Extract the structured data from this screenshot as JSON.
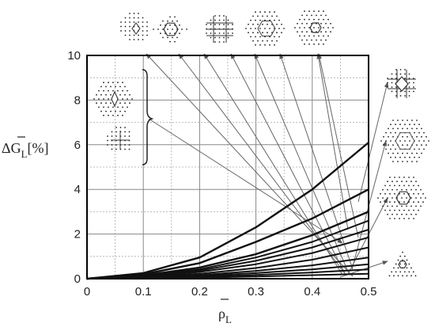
{
  "chart_data": {
    "type": "line",
    "xlabel_symbol": "ρ",
    "xlabel_sub": "L",
    "ylabel_symbol": "ΔG",
    "ylabel_sub": "L",
    "ylabel_unit": "[%]",
    "xlim": [
      0,
      0.5
    ],
    "ylim": [
      0,
      10
    ],
    "x_ticks": [
      0,
      0.1,
      0.2,
      0.3,
      0.4,
      0.5
    ],
    "x_tick_labels": [
      "0",
      "0.1",
      "0.2",
      "0.3",
      "0.4",
      "0.5"
    ],
    "y_ticks": [
      0,
      2,
      4,
      6,
      8,
      10
    ],
    "y_tick_labels": [
      "0",
      "2",
      "4",
      "6",
      "8",
      "10"
    ],
    "grid_major": true,
    "grid_minor_y": true,
    "series": [
      {
        "x": [
          0,
          0.1,
          0.2,
          0.3,
          0.4,
          0.5
        ],
        "values": [
          0,
          0.25,
          0.95,
          2.3,
          4.0,
          6.1
        ]
      },
      {
        "x": [
          0,
          0.1,
          0.2,
          0.3,
          0.4,
          0.5
        ],
        "values": [
          0,
          0.2,
          0.7,
          1.65,
          2.7,
          4.0
        ]
      },
      {
        "x": [
          0,
          0.1,
          0.2,
          0.3,
          0.4,
          0.5
        ],
        "values": [
          0,
          0.15,
          0.5,
          1.1,
          1.95,
          3.0
        ]
      },
      {
        "x": [
          0,
          0.1,
          0.2,
          0.3,
          0.4,
          0.5
        ],
        "values": [
          0,
          0.13,
          0.42,
          0.95,
          1.65,
          2.6
        ]
      },
      {
        "x": [
          0,
          0.1,
          0.2,
          0.3,
          0.4,
          0.5
        ],
        "values": [
          0,
          0.11,
          0.36,
          0.8,
          1.4,
          2.2
        ]
      },
      {
        "x": [
          0,
          0.1,
          0.2,
          0.3,
          0.4,
          0.5
        ],
        "values": [
          0,
          0.09,
          0.3,
          0.65,
          1.15,
          1.85
        ]
      },
      {
        "x": [
          0,
          0.1,
          0.2,
          0.3,
          0.4,
          0.5
        ],
        "values": [
          0,
          0.07,
          0.22,
          0.48,
          0.85,
          1.4
        ]
      },
      {
        "x": [
          0,
          0.1,
          0.2,
          0.3,
          0.4,
          0.5
        ],
        "values": [
          0,
          0.05,
          0.16,
          0.35,
          0.6,
          0.95
        ]
      },
      {
        "x": [
          0,
          0.1,
          0.2,
          0.3,
          0.4,
          0.5
        ],
        "values": [
          0,
          0.04,
          0.12,
          0.25,
          0.42,
          0.65
        ]
      },
      {
        "x": [
          0,
          0.1,
          0.2,
          0.3,
          0.4,
          0.5
        ],
        "values": [
          0,
          0.03,
          0.08,
          0.17,
          0.28,
          0.42
        ]
      },
      {
        "x": [
          0,
          0.1,
          0.2,
          0.3,
          0.4,
          0.5
        ],
        "values": [
          0,
          0.02,
          0.05,
          0.1,
          0.16,
          0.22
        ]
      }
    ],
    "annotations": {
      "top_inset_icons": [
        "diamond-lattice-icon",
        "hexagon-lattice-icon",
        "square-grid-icon",
        "hexagon-ring-lattice-icon",
        "hexagon-triangular-lattice-icon"
      ],
      "side_inset_icons": [
        "diamond-square-lattice-icon",
        "hexagon-ring-lattice-icon",
        "hexagon-triangular-lattice-icon",
        "triangle-lattice-icon"
      ],
      "left_inset_icons": [
        "diamond-triangular-lattice-icon",
        "square-dot-lattice-icon"
      ]
    }
  }
}
